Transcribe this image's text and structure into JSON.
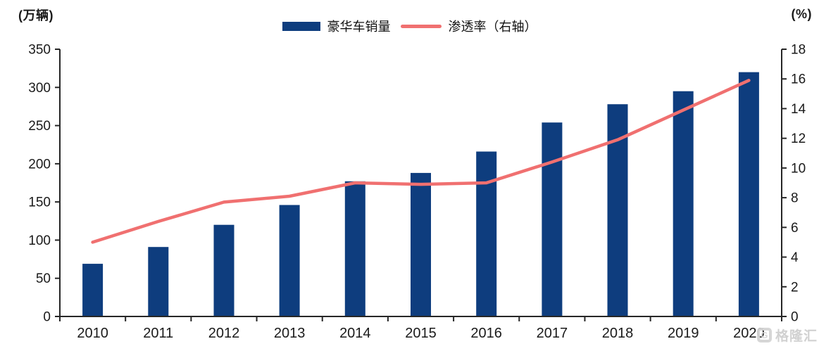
{
  "chart_data": {
    "type": "bar",
    "combo": "bar+line dual axis",
    "categories": [
      "2010",
      "2011",
      "2012",
      "2013",
      "2014",
      "2015",
      "2016",
      "2017",
      "2018",
      "2019",
      "2020"
    ],
    "series": [
      {
        "name": "豪华车销量",
        "type": "bar",
        "axis": "left",
        "color": "#0E3D7E",
        "values": [
          69,
          91,
          120,
          146,
          177,
          188,
          216,
          254,
          278,
          295,
          320
        ]
      },
      {
        "name": "渗透率（右轴）",
        "type": "line",
        "axis": "right",
        "color": "#F07070",
        "values": [
          5.0,
          6.4,
          7.7,
          8.1,
          9.0,
          8.9,
          9.0,
          10.4,
          11.9,
          13.9,
          15.9
        ]
      }
    ],
    "title": "",
    "xlabel": "",
    "left_axis": {
      "unit": "(万辆)",
      "min": 0,
      "max": 350,
      "tick_step": 50,
      "tick_labels": [
        "0",
        "50",
        "100",
        "150",
        "200",
        "250",
        "300",
        "350"
      ]
    },
    "right_axis": {
      "unit": "(%)",
      "min": 0,
      "max": 18,
      "tick_step": 2,
      "tick_labels": [
        "0",
        "2",
        "4",
        "6",
        "8",
        "10",
        "12",
        "14",
        "16",
        "18"
      ]
    },
    "grid": false,
    "legend_position": "top-center"
  },
  "legend": {
    "bar_label": "豪华车销量",
    "line_label": "渗透率（右轴）"
  },
  "watermark": {
    "logo_letter": "G",
    "text": "格隆汇"
  },
  "colors": {
    "bar": "#0E3D7E",
    "line": "#F07070",
    "axis": "#262626",
    "text": "#1a1a1a",
    "watermark": "#d4d4d4"
  }
}
